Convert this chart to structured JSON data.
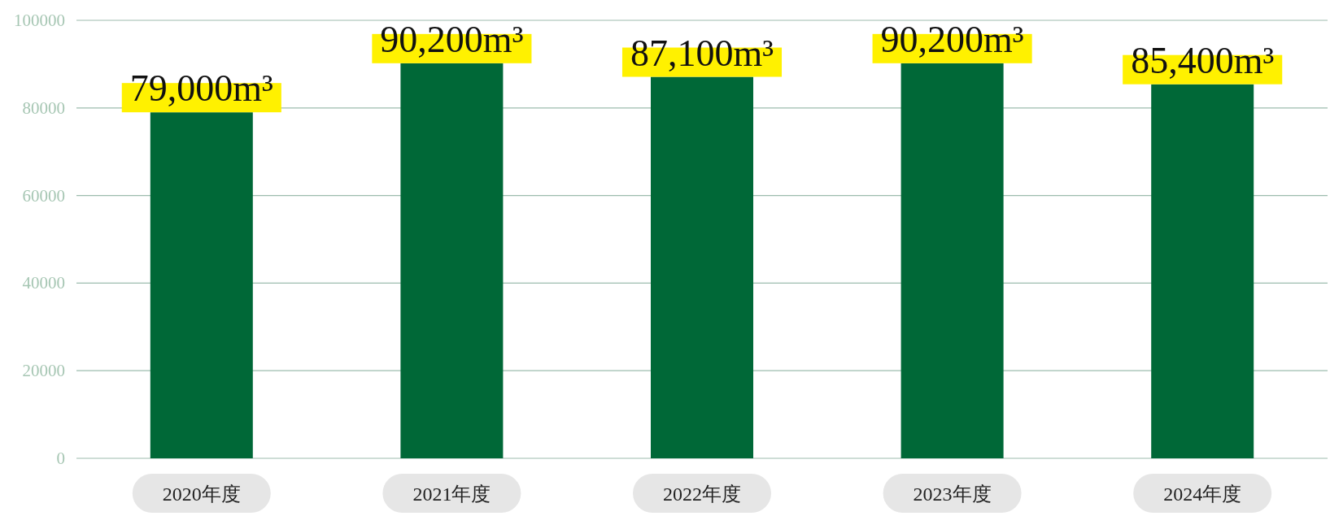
{
  "chart_data": {
    "type": "bar",
    "categories": [
      "2020年度",
      "2021年度",
      "2022年度",
      "2023年度",
      "2024年度"
    ],
    "values": [
      79000,
      90200,
      87100,
      90200,
      85400
    ],
    "value_labels": [
      "79,000m³",
      "90,200m³",
      "87,100m³",
      "90,200m³",
      "85,400m³"
    ],
    "color": "#006837",
    "ylim": [
      0,
      100000
    ],
    "yticks": [
      0,
      20000,
      40000,
      60000,
      80000,
      100000
    ],
    "grid": "y"
  }
}
